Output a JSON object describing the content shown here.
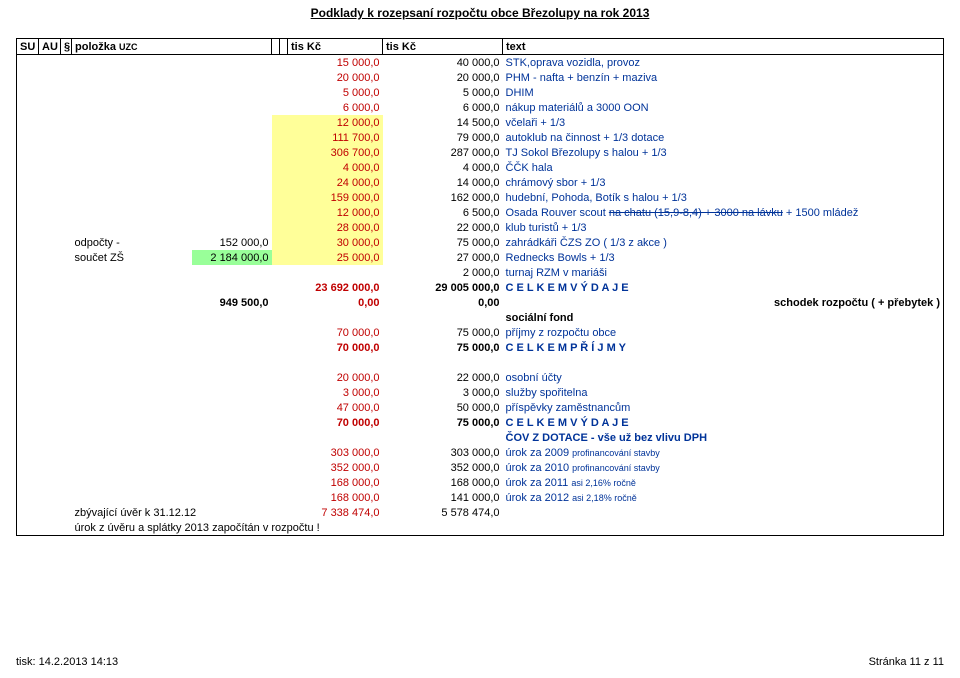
{
  "title": "Podklady k rozepsaní rozpočtu obce Březolupy na rok 2013",
  "header": {
    "su": "SU",
    "au": "AU",
    "par": "§",
    "polozka": "položka",
    "uz": "UZ",
    "org": "C",
    "tis1": "tis Kč",
    "tis2": "tis Kč",
    "text": "text"
  },
  "rows1": [
    {
      "c1": "15 000,0",
      "c2": "40 000,0",
      "t": "STK,oprava vozidla, provoz"
    },
    {
      "c1": "20 000,0",
      "c2": "20 000,0",
      "t": "PHM - nafta + benzín + maziva"
    },
    {
      "c1": "5 000,0",
      "c2": "5 000,0",
      "t": "DHIM"
    },
    {
      "c1": "6 000,0",
      "c2": "6 000,0",
      "t": "nákup materiálů a 3000 OON"
    },
    {
      "c1": "12 000,0",
      "c2": "14 500,0",
      "t": "včelaři + 1/3",
      "hl": true
    },
    {
      "c1": "111 700,0",
      "c2": "79 000,0",
      "t": "autoklub na činnost + 1/3 dotace",
      "hl": true
    },
    {
      "c1": "306 700,0",
      "c2": "287 000,0",
      "t": "TJ Sokol Březolupy s halou + 1/3",
      "hl": true
    },
    {
      "c1": "4 000,0",
      "c2": "4 000,0",
      "t": "ČČK hala",
      "hl": true
    },
    {
      "c1": "24 000,0",
      "c2": "14 000,0",
      "t": "chrámový sbor + 1/3",
      "hl": true
    },
    {
      "c1": "159 000,0",
      "c2": "162 000,0",
      "t": "hudební, Pohoda, Botík s halou + 1/3",
      "hl": true
    },
    {
      "c1": "12 000,0",
      "c2": "6 500,0",
      "t": "",
      "hl": true
    },
    {
      "c1": "28 000,0",
      "c2": "22 000,0",
      "t": "klub turistů + 1/3",
      "hl": true
    }
  ],
  "osada_text_parts": {
    "p1": "Osada Rouver scout ",
    "p2_strike": "na chatu (15,9-8,4) + 3000 na lávku",
    "p3": " + 1500 mládež"
  },
  "row_odpocty": {
    "label": "odpočty",
    "dash": "-",
    "amt": "152 000,0",
    "c1": "30 000,0",
    "c2": "75 000,0",
    "t": "zahrádkáři ČZS ZO ( 1/3 z akce )",
    "hl": true
  },
  "row_soucet": {
    "label": "součet ZŠ",
    "amt": "2 184 000,0",
    "amt_hl": true,
    "c1": "25 000,0",
    "c2": "27 000,0",
    "t": "Rednecks Bowls + 1/3",
    "hl": true
  },
  "row_turnaj": {
    "c2": "2 000,0",
    "t": "turnaj RZM v mariáši"
  },
  "row_celkemv": {
    "c1": "23 692 000,0",
    "c2": "29 005 000,0",
    "t": "C E L K E M   V Ý D A J E"
  },
  "row_schodek": {
    "left": "949 500,0",
    "c1": "0,00",
    "c2": "0,00",
    "t": "schodek rozpočtu ( + přebytek )"
  },
  "row_socfond": {
    "t": "sociální fond"
  },
  "rows2": [
    {
      "c1": "70 000,0",
      "c2": "75 000,0",
      "t": "příjmy z rozpočtu obce"
    },
    {
      "c1": "70 000,0",
      "c2": "75 000,0",
      "t": "C E L K E M   P Ř Í J M Y",
      "bold": true
    }
  ],
  "rows3": [
    {
      "c1": "20 000,0",
      "c2": "22 000,0",
      "t": "osobní účty"
    },
    {
      "c1": "3 000,0",
      "c2": "3 000,0",
      "t": "služby spořitelna"
    },
    {
      "c1": "47 000,0",
      "c2": "50 000,0",
      "t": "příspěvky zaměstnancům"
    },
    {
      "c1": "70 000,0",
      "c2": "75 000,0",
      "t": "C E L K E M   V Ý D A J E",
      "bold": true
    }
  ],
  "row_cov": {
    "t": "ČOV Z DOTACE - vše už bez vlivu DPH"
  },
  "rows4": [
    {
      "c1": "303 000,0",
      "c2": "303 000,0",
      "t": "úrok za 2009 ",
      "tsmall": "profinancování stavby"
    },
    {
      "c1": "352 000,0",
      "c2": "352 000,0",
      "t": "úrok za 2010 ",
      "tsmall": "profinancování stavby"
    },
    {
      "c1": "168 000,0",
      "c2": "168 000,0",
      "t": "úrok za 2011 ",
      "tsmall": "asi 2,16% ročně"
    },
    {
      "c1": "168 000,0",
      "c2": "141 000,0",
      "t": "úrok za 2012 ",
      "tsmall": "asi 2,18% ročně"
    }
  ],
  "row_zbyv": {
    "label": "zbývající úvěr k 31.12.12",
    "c1": "7 338 474,0",
    "c2": "5 578 474,0"
  },
  "row_note": {
    "label": "úrok z úvěru a splátky 2013 započítán v rozpočtu !"
  },
  "footer": {
    "left": "tisk: 14.2.2013 14:13",
    "right": "Stránka 11 z 11"
  }
}
